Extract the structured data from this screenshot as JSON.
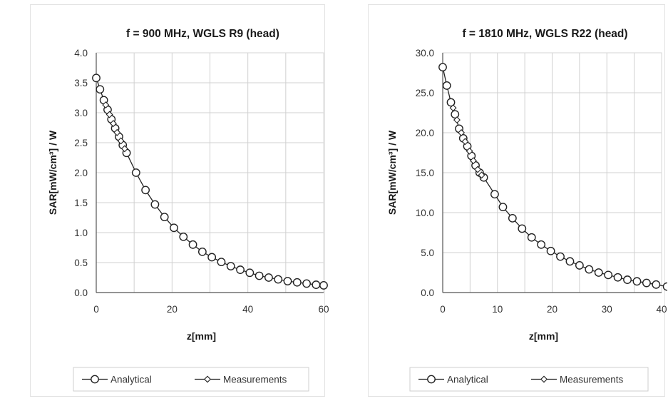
{
  "chart_data": [
    {
      "type": "line",
      "title": "f = 900 MHz, WGLS R9 (head)",
      "xlabel": "z[mm]",
      "ylabel": "SAR[mW/cm³] / W",
      "xlim": [
        0,
        60
      ],
      "ylim": [
        0,
        4.0
      ],
      "xticks": [
        "0",
        "20",
        "40",
        "60"
      ],
      "yticks": [
        "0.0",
        "0.5",
        "1.0",
        "1.5",
        "2.0",
        "2.5",
        "3.0",
        "3.5",
        "4.0"
      ],
      "grid": true,
      "legend_position": "bottom",
      "series": [
        {
          "name": "Analytical",
          "marker": "circle",
          "x": [
            0,
            1,
            2,
            3,
            4,
            5,
            6,
            7,
            8,
            10.5,
            13,
            15.5,
            18,
            20.5,
            23,
            25.5,
            28,
            30.5,
            33,
            35.5,
            38,
            40.5,
            43,
            45.5,
            48,
            50.5,
            53,
            55.5,
            58,
            60
          ],
          "y": [
            3.58,
            3.39,
            3.21,
            3.05,
            2.89,
            2.74,
            2.6,
            2.46,
            2.33,
            2.0,
            1.71,
            1.47,
            1.26,
            1.08,
            0.93,
            0.8,
            0.68,
            0.59,
            0.51,
            0.44,
            0.38,
            0.33,
            0.28,
            0.25,
            0.22,
            0.19,
            0.17,
            0.15,
            0.13,
            0.12
          ]
        },
        {
          "name": "Measurements",
          "marker": "diamond",
          "x": [
            2.5,
            3.5,
            4.5,
            5.5,
            6.5,
            7.5
          ],
          "y": [
            3.13,
            2.97,
            2.82,
            2.67,
            2.53,
            2.4
          ]
        }
      ]
    },
    {
      "type": "line",
      "title": "f = 1810 MHz, WGLS R22 (head)",
      "xlabel": "z[mm]",
      "ylabel": "SAR[mW/cm³] / W",
      "xlim": [
        0,
        40
      ],
      "ylim": [
        0,
        30.0
      ],
      "xticks": [
        "0",
        "10",
        "20",
        "30",
        "40"
      ],
      "yticks": [
        "0.0",
        "5.0",
        "10.0",
        "15.0",
        "20.0",
        "25.0",
        "30.0"
      ],
      "grid": true,
      "legend_position": "bottom",
      "series": [
        {
          "name": "Analytical",
          "marker": "circle",
          "x": [
            0,
            0.75,
            1.5,
            2.25,
            3,
            3.75,
            4.5,
            5.25,
            6,
            6.75,
            7.5,
            9.5,
            11,
            12.75,
            14.5,
            16.25,
            18,
            19.75,
            21.5,
            23.25,
            25,
            26.75,
            28.5,
            30.25,
            32,
            33.75,
            35.5,
            37.25,
            39,
            41
          ],
          "y": [
            28.2,
            25.9,
            23.8,
            22.3,
            20.5,
            19.3,
            18.3,
            17.1,
            15.9,
            15.0,
            14.4,
            12.3,
            10.7,
            9.3,
            8.0,
            6.9,
            6.0,
            5.2,
            4.5,
            3.9,
            3.4,
            2.9,
            2.5,
            2.2,
            1.9,
            1.6,
            1.4,
            1.2,
            1.0,
            0.75
          ]
        },
        {
          "name": "Measurements",
          "marker": "diamond",
          "x": [
            1.9,
            2.6,
            3.4,
            4.1,
            4.9,
            5.6,
            6.4,
            7.1
          ],
          "y": [
            23.1,
            21.6,
            20.0,
            18.9,
            17.7,
            16.5,
            15.4,
            14.7
          ]
        }
      ]
    }
  ]
}
